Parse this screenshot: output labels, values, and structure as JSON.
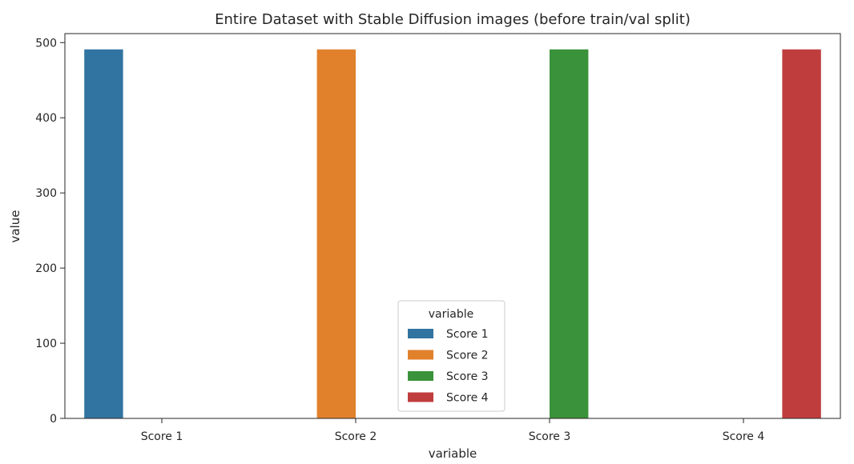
{
  "chart_data": {
    "type": "bar",
    "title": "Entire Dataset with Stable Diffusion images (before train/val split)",
    "xlabel": "variable",
    "ylabel": "value",
    "categories": [
      "Score 1",
      "Score 2",
      "Score 3",
      "Score 4"
    ],
    "ylim": [
      0,
      512
    ],
    "yticks": [
      0,
      100,
      200,
      300,
      400,
      500
    ],
    "grid": false,
    "series": [
      {
        "name": "Score 1",
        "color": "#3274a1",
        "values": [
          491,
          0,
          0,
          0
        ]
      },
      {
        "name": "Score 2",
        "color": "#e1812c",
        "values": [
          0,
          491,
          0,
          0
        ]
      },
      {
        "name": "Score 3",
        "color": "#3a923a",
        "values": [
          0,
          0,
          491,
          0
        ]
      },
      {
        "name": "Score 4",
        "color": "#c03d3e",
        "values": [
          0,
          0,
          0,
          491
        ]
      }
    ],
    "legend": {
      "title": "variable",
      "position": "lower-center"
    }
  }
}
